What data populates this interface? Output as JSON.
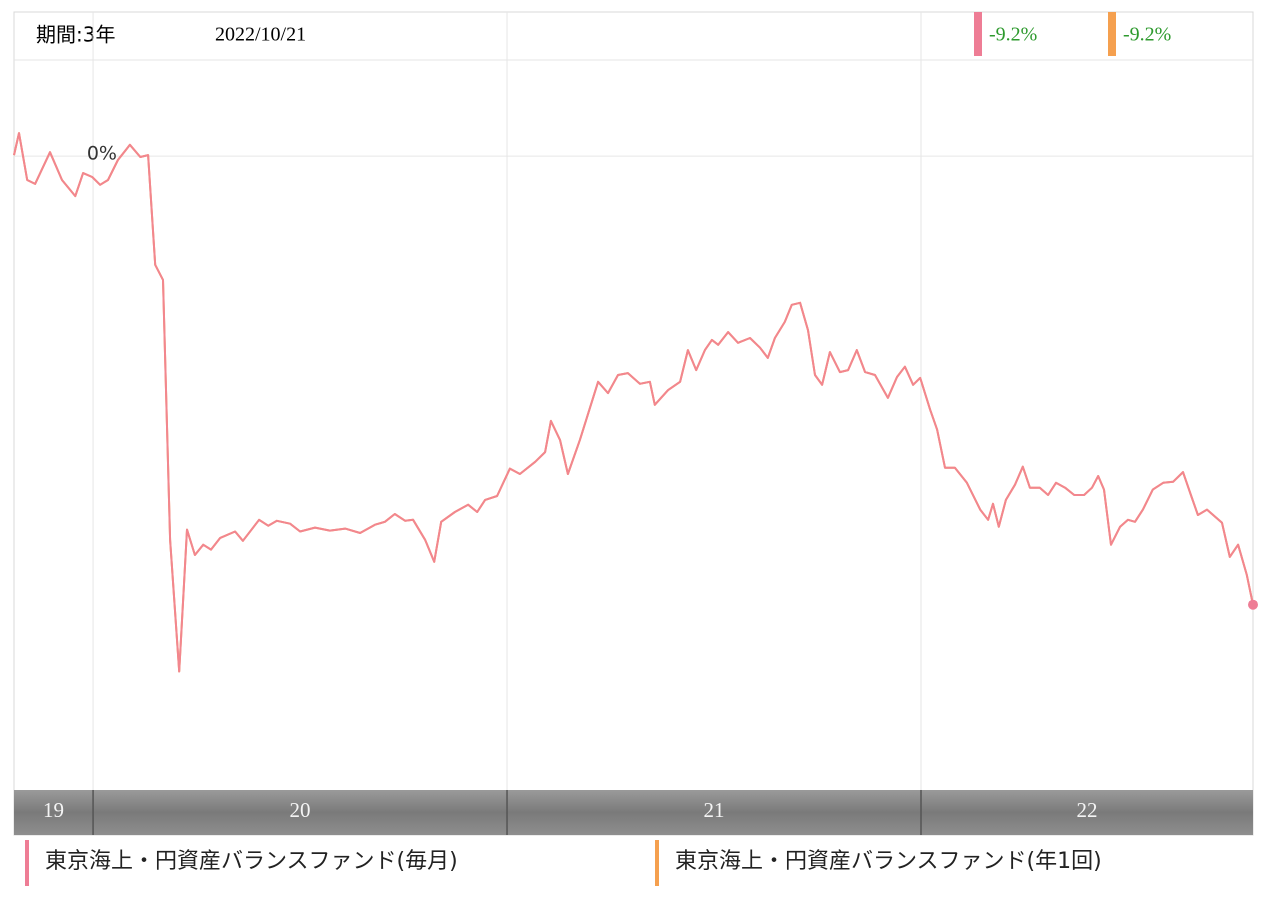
{
  "chart_data": {
    "type": "line",
    "period_label": "期間:3年",
    "date": "2022/10/21",
    "x": [
      2019.809,
      2019.821,
      2019.841,
      2019.86,
      2019.896,
      2019.925,
      2019.957,
      2019.976,
      2019.998,
      2020.017,
      2020.036,
      2020.06,
      2020.089,
      2020.114,
      2020.133,
      2020.15,
      2020.169,
      2020.186,
      2020.208,
      2020.227,
      2020.246,
      2020.266,
      2020.285,
      2020.307,
      2020.343,
      2020.362,
      2020.401,
      2020.423,
      2020.444,
      2020.476,
      2020.5,
      2020.536,
      2020.572,
      2020.609,
      2020.645,
      2020.681,
      2020.705,
      2020.729,
      2020.754,
      2020.773,
      2020.802,
      2020.824,
      2020.841,
      2020.874,
      2020.906,
      2020.928,
      2020.947,
      2020.976,
      2021.007,
      2021.031,
      2021.068,
      2021.092,
      2021.106,
      2021.128,
      2021.147,
      2021.176,
      2021.22,
      2021.244,
      2021.268,
      2021.292,
      2021.321,
      2021.345,
      2021.357,
      2021.389,
      2021.418,
      2021.437,
      2021.457,
      2021.478,
      2021.495,
      2021.51,
      2021.534,
      2021.558,
      2021.587,
      2021.611,
      2021.63,
      2021.647,
      2021.671,
      2021.688,
      2021.708,
      2021.727,
      2021.744,
      2021.761,
      2021.78,
      2021.804,
      2021.824,
      2021.845,
      2021.865,
      2021.889,
      2021.92,
      2021.942,
      2021.961,
      2021.981,
      2021.998,
      2022.022,
      2022.039,
      2022.058,
      2022.082,
      2022.111,
      2022.143,
      2022.162,
      2022.174,
      2022.188,
      2022.205,
      2022.227,
      2022.246,
      2022.263,
      2022.287,
      2022.307,
      2022.326,
      2022.348,
      2022.37,
      2022.394,
      2022.413,
      2022.428,
      2022.442,
      2022.459,
      2022.481,
      2022.5,
      2022.517,
      2022.536,
      2022.56,
      2022.585,
      2022.609,
      2022.633,
      2022.652,
      2022.669,
      2022.691,
      2022.727,
      2022.746,
      2022.766,
      2022.787,
      2022.802
    ],
    "series": [
      {
        "name": "東京海上・円資産バランスファンド(毎月)",
        "color": "#ee7d95",
        "line_color": "#f2868f",
        "change": {
          "value": -9.2,
          "label": "-9.2%"
        },
        "values": [
          0.02,
          0.47,
          -0.49,
          -0.57,
          0.08,
          -0.49,
          -0.82,
          -0.35,
          -0.43,
          -0.59,
          -0.49,
          -0.08,
          0.23,
          -0.02,
          0.02,
          -2.23,
          -2.54,
          -7.87,
          -10.57,
          -7.66,
          -8.18,
          -7.97,
          -8.07,
          -7.83,
          -7.7,
          -7.89,
          -7.46,
          -7.58,
          -7.48,
          -7.54,
          -7.7,
          -7.62,
          -7.68,
          -7.64,
          -7.73,
          -7.56,
          -7.5,
          -7.34,
          -7.48,
          -7.46,
          -7.87,
          -8.32,
          -7.5,
          -7.3,
          -7.15,
          -7.3,
          -7.05,
          -6.97,
          -6.41,
          -6.52,
          -6.27,
          -6.07,
          -5.43,
          -5.82,
          -6.52,
          -5.82,
          -4.63,
          -4.86,
          -4.49,
          -4.45,
          -4.67,
          -4.63,
          -5.1,
          -4.8,
          -4.63,
          -3.98,
          -4.39,
          -3.98,
          -3.77,
          -3.87,
          -3.61,
          -3.83,
          -3.73,
          -3.93,
          -4.14,
          -3.73,
          -3.4,
          -3.05,
          -3.01,
          -3.57,
          -4.49,
          -4.69,
          -4.02,
          -4.43,
          -4.39,
          -3.98,
          -4.43,
          -4.49,
          -4.96,
          -4.53,
          -4.32,
          -4.69,
          -4.55,
          -5.2,
          -5.61,
          -6.39,
          -6.39,
          -6.7,
          -7.25,
          -7.46,
          -7.13,
          -7.6,
          -7.05,
          -6.74,
          -6.37,
          -6.8,
          -6.8,
          -6.95,
          -6.7,
          -6.8,
          -6.95,
          -6.95,
          -6.8,
          -6.56,
          -6.84,
          -7.97,
          -7.6,
          -7.46,
          -7.5,
          -7.25,
          -6.84,
          -6.7,
          -6.68,
          -6.48,
          -6.95,
          -7.36,
          -7.25,
          -7.52,
          -8.22,
          -7.97,
          -8.59,
          -9.2
        ]
      },
      {
        "name": "東京海上・円資産バランスファンド(年1回)",
        "color": "#f5a04f",
        "line_color": "#f5a04f",
        "change": {
          "value": -9.2,
          "label": "-9.2%"
        },
        "values": [
          0.02,
          0.47,
          -0.49,
          -0.57,
          0.08,
          -0.49,
          -0.82,
          -0.35,
          -0.43,
          -0.59,
          -0.49,
          -0.08,
          0.23,
          -0.02,
          0.02,
          -2.23,
          -2.54,
          -7.87,
          -10.57,
          -7.66,
          -8.18,
          -7.97,
          -8.07,
          -7.83,
          -7.7,
          -7.89,
          -7.46,
          -7.58,
          -7.48,
          -7.54,
          -7.7,
          -7.62,
          -7.68,
          -7.64,
          -7.73,
          -7.56,
          -7.5,
          -7.34,
          -7.48,
          -7.46,
          -7.87,
          -8.32,
          -7.5,
          -7.3,
          -7.15,
          -7.3,
          -7.05,
          -6.97,
          -6.41,
          -6.52,
          -6.27,
          -6.07,
          -5.43,
          -5.82,
          -6.52,
          -5.82,
          -4.63,
          -4.86,
          -4.49,
          -4.45,
          -4.67,
          -4.63,
          -5.1,
          -4.8,
          -4.63,
          -3.98,
          -4.39,
          -3.98,
          -3.77,
          -3.87,
          -3.61,
          -3.83,
          -3.73,
          -3.93,
          -4.14,
          -3.73,
          -3.4,
          -3.05,
          -3.01,
          -3.57,
          -4.49,
          -4.69,
          -4.02,
          -4.43,
          -4.39,
          -3.98,
          -4.43,
          -4.49,
          -4.96,
          -4.53,
          -4.32,
          -4.69,
          -4.55,
          -5.2,
          -5.61,
          -6.39,
          -6.39,
          -6.7,
          -7.25,
          -7.46,
          -7.13,
          -7.6,
          -7.05,
          -6.74,
          -6.37,
          -6.8,
          -6.8,
          -6.95,
          -6.7,
          -6.8,
          -6.95,
          -6.95,
          -6.8,
          -6.56,
          -6.84,
          -7.97,
          -7.6,
          -7.46,
          -7.5,
          -7.25,
          -6.84,
          -6.7,
          -6.68,
          -6.48,
          -6.95,
          -7.36,
          -7.25,
          -7.52,
          -8.22,
          -7.97,
          -8.59,
          -9.2
        ]
      }
    ],
    "xlim": [
      2019.809,
      2022.802
    ],
    "xticks": [
      2020,
      2021,
      2022
    ],
    "year_labels": [
      "19",
      "20",
      "21",
      "22"
    ],
    "ylim": [
      -13,
      1.97
    ],
    "yticks": [
      {
        "value": 0,
        "label": "0%"
      }
    ],
    "grid": true,
    "change_color": "#2e9a2e"
  }
}
